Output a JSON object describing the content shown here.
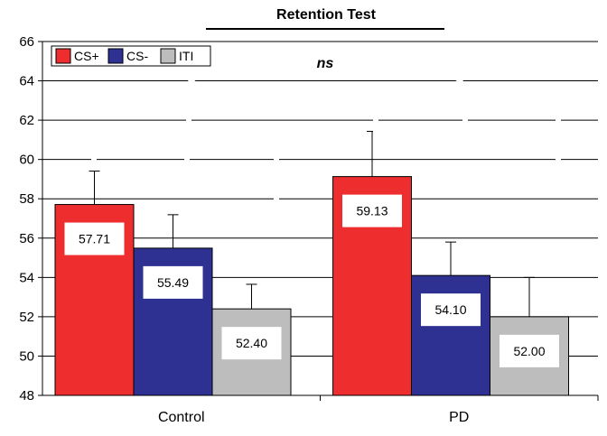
{
  "chart_data": {
    "type": "bar",
    "title": "Retention Test",
    "xlabel": "",
    "ylabel": "",
    "ylim": [
      48,
      66
    ],
    "yticks": [
      "48",
      "50",
      "52",
      "54",
      "56",
      "58",
      "60",
      "62",
      "64",
      "66"
    ],
    "categories": [
      "Control",
      "PD"
    ],
    "series": [
      {
        "name": "CS+",
        "color": "#ee2d2f",
        "values": [
          57.71,
          59.13
        ],
        "error": [
          1.7,
          2.3
        ],
        "labels": [
          "57.71",
          "59.13"
        ]
      },
      {
        "name": "CS-",
        "color": "#2e3192",
        "values": [
          55.49,
          54.1
        ],
        "error": [
          1.7,
          1.7
        ],
        "labels": [
          "55.49",
          "54.10"
        ]
      },
      {
        "name": "ITI",
        "color": "#bdbdbd",
        "values": [
          52.4,
          52.0
        ],
        "error": [
          1.25,
          2.0
        ],
        "labels": [
          "52.40",
          "52.00"
        ]
      }
    ],
    "annotation": "ns",
    "grid": "horizontal",
    "legend_position": "top-left",
    "plot_background": "#ffffff",
    "bracket_color": "#ffffff"
  }
}
